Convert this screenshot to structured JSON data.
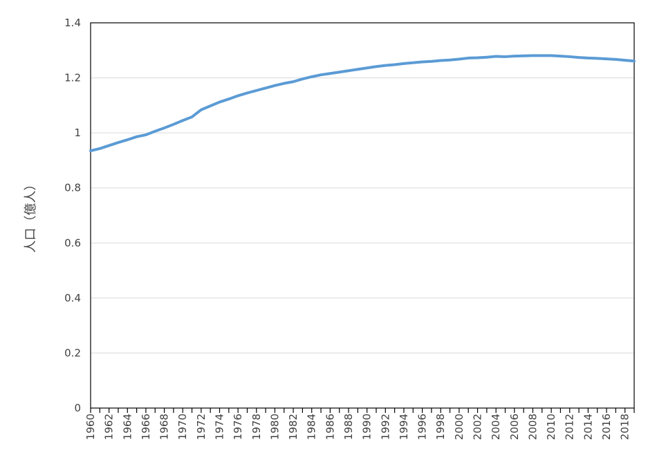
{
  "chart_data": {
    "type": "line",
    "title": "",
    "xlabel": "",
    "ylabel": "人口（億人）",
    "ylim": [
      0,
      1.4
    ],
    "yticks": [
      0,
      0.2,
      0.4,
      0.6,
      0.8,
      1,
      1.2,
      1.4
    ],
    "ytick_labels": [
      "0",
      "0.2",
      "0.4",
      "0.6",
      "0.8",
      "1",
      "1.2",
      "1.4"
    ],
    "xlim": [
      1960,
      2019
    ],
    "xtick_labels": [
      "1960",
      "1962",
      "1964",
      "1966",
      "1968",
      "1970",
      "1972",
      "1974",
      "1976",
      "1978",
      "1980",
      "1982",
      "1984",
      "1986",
      "1988",
      "1990",
      "1992",
      "1994",
      "1996",
      "1998",
      "2000",
      "2002",
      "2004",
      "2006",
      "2008",
      "2010",
      "2012",
      "2014",
      "2016",
      "2018"
    ],
    "grid": true,
    "legend": "none",
    "line_color": "#5b9bd5",
    "series": [
      {
        "x": [
          1960,
          1961,
          1962,
          1963,
          1964,
          1965,
          1966,
          1967,
          1968,
          1969,
          1970,
          1971,
          1972,
          1973,
          1974,
          1975,
          1976,
          1977,
          1978,
          1979,
          1980,
          1981,
          1982,
          1983,
          1984,
          1985,
          1986,
          1987,
          1988,
          1989,
          1990,
          1991,
          1992,
          1993,
          1994,
          1995,
          1996,
          1997,
          1998,
          1999,
          2000,
          2001,
          2002,
          2003,
          2004,
          2005,
          2006,
          2007,
          2008,
          2009,
          2010,
          2011,
          2012,
          2013,
          2014,
          2015,
          2016,
          2017,
          2018,
          2019
        ],
        "values": [
          0.935,
          0.943,
          0.954,
          0.965,
          0.975,
          0.986,
          0.993,
          1.006,
          1.018,
          1.031,
          1.045,
          1.058,
          1.084,
          1.098,
          1.112,
          1.123,
          1.135,
          1.145,
          1.154,
          1.163,
          1.172,
          1.18,
          1.186,
          1.196,
          1.204,
          1.211,
          1.216,
          1.221,
          1.226,
          1.231,
          1.236,
          1.241,
          1.245,
          1.248,
          1.252,
          1.255,
          1.258,
          1.26,
          1.263,
          1.265,
          1.268,
          1.272,
          1.273,
          1.275,
          1.278,
          1.277,
          1.279,
          1.28,
          1.281,
          1.281,
          1.281,
          1.279,
          1.277,
          1.274,
          1.272,
          1.271,
          1.269,
          1.267,
          1.264,
          1.261
        ]
      }
    ]
  }
}
